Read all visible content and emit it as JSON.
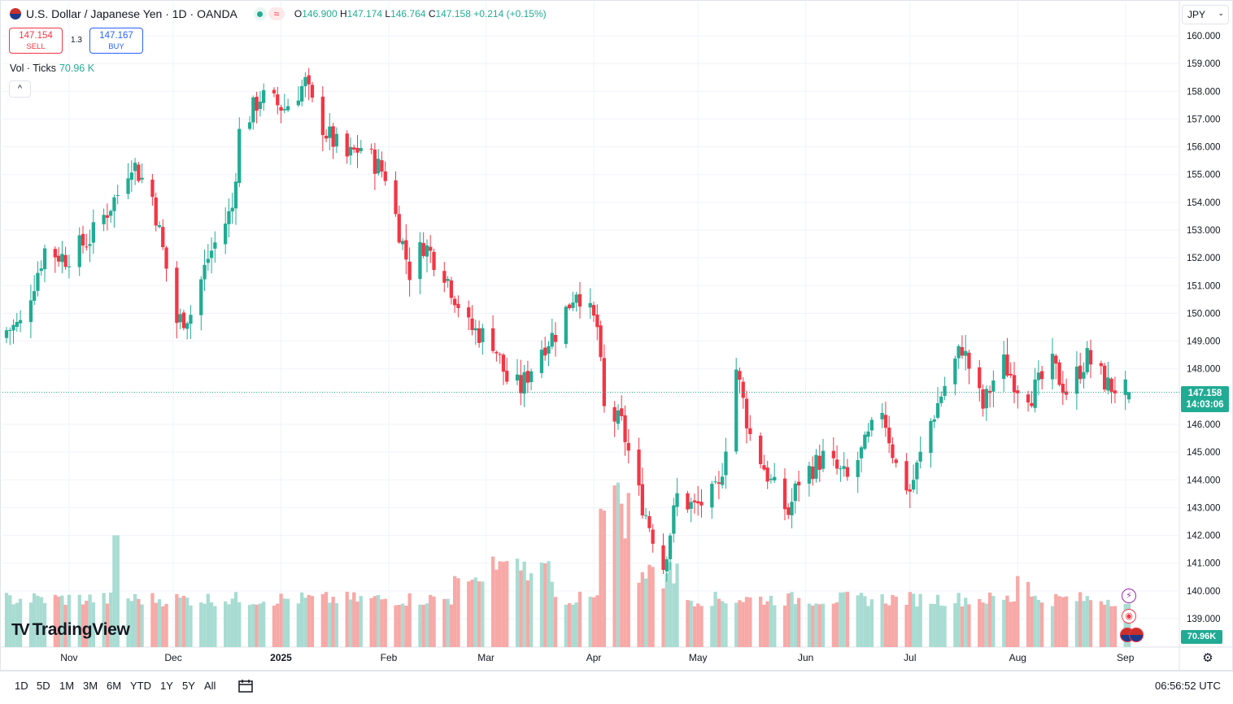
{
  "header": {
    "title": "U.S. Dollar / Japanese Yen · 1D · OANDA",
    "ohlc": {
      "o_label": "O",
      "o": "146.900",
      "h_label": "H",
      "h": "147.174",
      "l_label": "L",
      "l": "146.764",
      "c_label": "C",
      "c": "147.158",
      "change": "+0.214 (+0.15%)"
    },
    "wave_symbol": "≈"
  },
  "trade": {
    "sell_price": "147.154",
    "sell_label": "SELL",
    "spread": "1.3",
    "buy_price": "147.167",
    "buy_label": "BUY"
  },
  "volume_legend": {
    "label": "Vol · Ticks",
    "value": "70.96 K"
  },
  "collapse_symbol": "^",
  "currency": {
    "selected": "JPY",
    "chevron": "⌄"
  },
  "price_axis": {
    "ticks": [
      "160.000",
      "159.000",
      "158.000",
      "157.000",
      "156.000",
      "155.000",
      "154.000",
      "153.000",
      "152.000",
      "151.000",
      "150.000",
      "149.000",
      "148.000",
      "146.000",
      "145.000",
      "144.000",
      "143.000",
      "142.000",
      "141.000",
      "140.000",
      "139.000"
    ],
    "last_price": "147.158",
    "countdown": "14:03:06",
    "volume_value": "70.96K"
  },
  "time_axis": [
    "Nov",
    "Dec",
    "2025",
    "Feb",
    "Mar",
    "Apr",
    "May",
    "Jun",
    "Jul",
    "Aug",
    "Sep"
  ],
  "watermark": {
    "logo": "TV",
    "name": "TradingView"
  },
  "ranges": [
    "1D",
    "5D",
    "1M",
    "3M",
    "6M",
    "YTD",
    "1Y",
    "5Y",
    "All"
  ],
  "clock": "06:56:52 UTC",
  "icons": {
    "lightning": "⚡",
    "target": "◉",
    "settings": "⚙"
  },
  "colors": {
    "up": "#22ab94",
    "down": "#f23645",
    "vol_up": "#a8dcd2",
    "vol_down": "#f7a9a7",
    "grid": "#f0f3fa"
  },
  "chart_data": {
    "type": "candlestick",
    "symbol": "USD/JPY",
    "interval": "1D",
    "ylim": [
      138.5,
      160.3
    ],
    "x_range": [
      "2024-10-14",
      "2025-09-02"
    ],
    "grid": true,
    "anchors": [
      [
        "2024-10-14",
        149.4
      ],
      [
        "2024-10-18",
        149.6
      ],
      [
        "2024-10-25",
        152.3
      ],
      [
        "2024-10-31",
        152.0
      ],
      [
        "2024-11-07",
        152.7
      ],
      [
        "2024-11-15",
        154.3
      ],
      [
        "2024-11-19",
        155.5
      ],
      [
        "2024-11-25",
        154.2
      ],
      [
        "2024-12-02",
        149.7
      ],
      [
        "2024-12-06",
        150.0
      ],
      [
        "2024-12-11",
        152.0
      ],
      [
        "2024-12-18",
        153.8
      ],
      [
        "2024-12-20",
        156.5
      ],
      [
        "2024-12-26",
        157.8
      ],
      [
        "2025-01-02",
        157.4
      ],
      [
        "2025-01-08",
        158.3
      ],
      [
        "2025-01-10",
        157.5
      ],
      [
        "2025-01-14",
        156.5
      ],
      [
        "2025-01-20",
        155.6
      ],
      [
        "2025-01-24",
        156.0
      ],
      [
        "2025-01-31",
        155.0
      ],
      [
        "2025-02-07",
        151.5
      ],
      [
        "2025-02-11",
        152.5
      ],
      [
        "2025-02-17",
        151.5
      ],
      [
        "2025-02-24",
        149.5
      ],
      [
        "2025-03-03",
        149.0
      ],
      [
        "2025-03-07",
        147.6
      ],
      [
        "2025-03-11",
        147.3
      ],
      [
        "2025-03-17",
        148.8
      ],
      [
        "2025-03-21",
        149.3
      ],
      [
        "2025-03-27",
        150.9
      ],
      [
        "2025-04-02",
        149.5
      ],
      [
        "2025-04-04",
        146.5
      ],
      [
        "2025-04-09",
        146.0
      ],
      [
        "2025-04-14",
        143.5
      ],
      [
        "2025-04-21",
        140.9
      ],
      [
        "2025-04-25",
        143.4
      ],
      [
        "2025-04-30",
        143.0
      ],
      [
        "2025-05-07",
        143.6
      ],
      [
        "2025-05-12",
        148.0
      ],
      [
        "2025-05-16",
        145.6
      ],
      [
        "2025-05-22",
        143.9
      ],
      [
        "2025-05-27",
        142.8
      ],
      [
        "2025-05-30",
        144.0
      ],
      [
        "2025-06-06",
        144.8
      ],
      [
        "2025-06-13",
        144.0
      ],
      [
        "2025-06-18",
        145.2
      ],
      [
        "2025-06-23",
        146.6
      ],
      [
        "2025-06-27",
        144.5
      ],
      [
        "2025-07-01",
        143.6
      ],
      [
        "2025-07-07",
        146.1
      ],
      [
        "2025-07-11",
        147.4
      ],
      [
        "2025-07-16",
        148.8
      ],
      [
        "2025-07-22",
        146.6
      ],
      [
        "2025-07-25",
        147.6
      ],
      [
        "2025-07-28",
        148.2
      ],
      [
        "2025-08-01",
        147.4
      ],
      [
        "2025-08-05",
        147.1
      ],
      [
        "2025-08-11",
        148.1
      ],
      [
        "2025-08-15",
        147.2
      ],
      [
        "2025-08-21",
        148.4
      ],
      [
        "2025-08-27",
        147.4
      ],
      [
        "2025-09-01",
        147.2
      ],
      [
        "2025-09-02",
        147.158
      ]
    ],
    "volume": {
      "max_k": 240,
      "notes": "Daily tick volume bars; typical ~60-85K, spike ~160K mid-Nov, surge ~150-240K in early-to-mid April, ~100-130K late Feb–Mar."
    },
    "last": {
      "open": 146.9,
      "high": 147.174,
      "low": 146.764,
      "close": 147.158,
      "change": 0.214,
      "change_pct": 0.15
    }
  }
}
